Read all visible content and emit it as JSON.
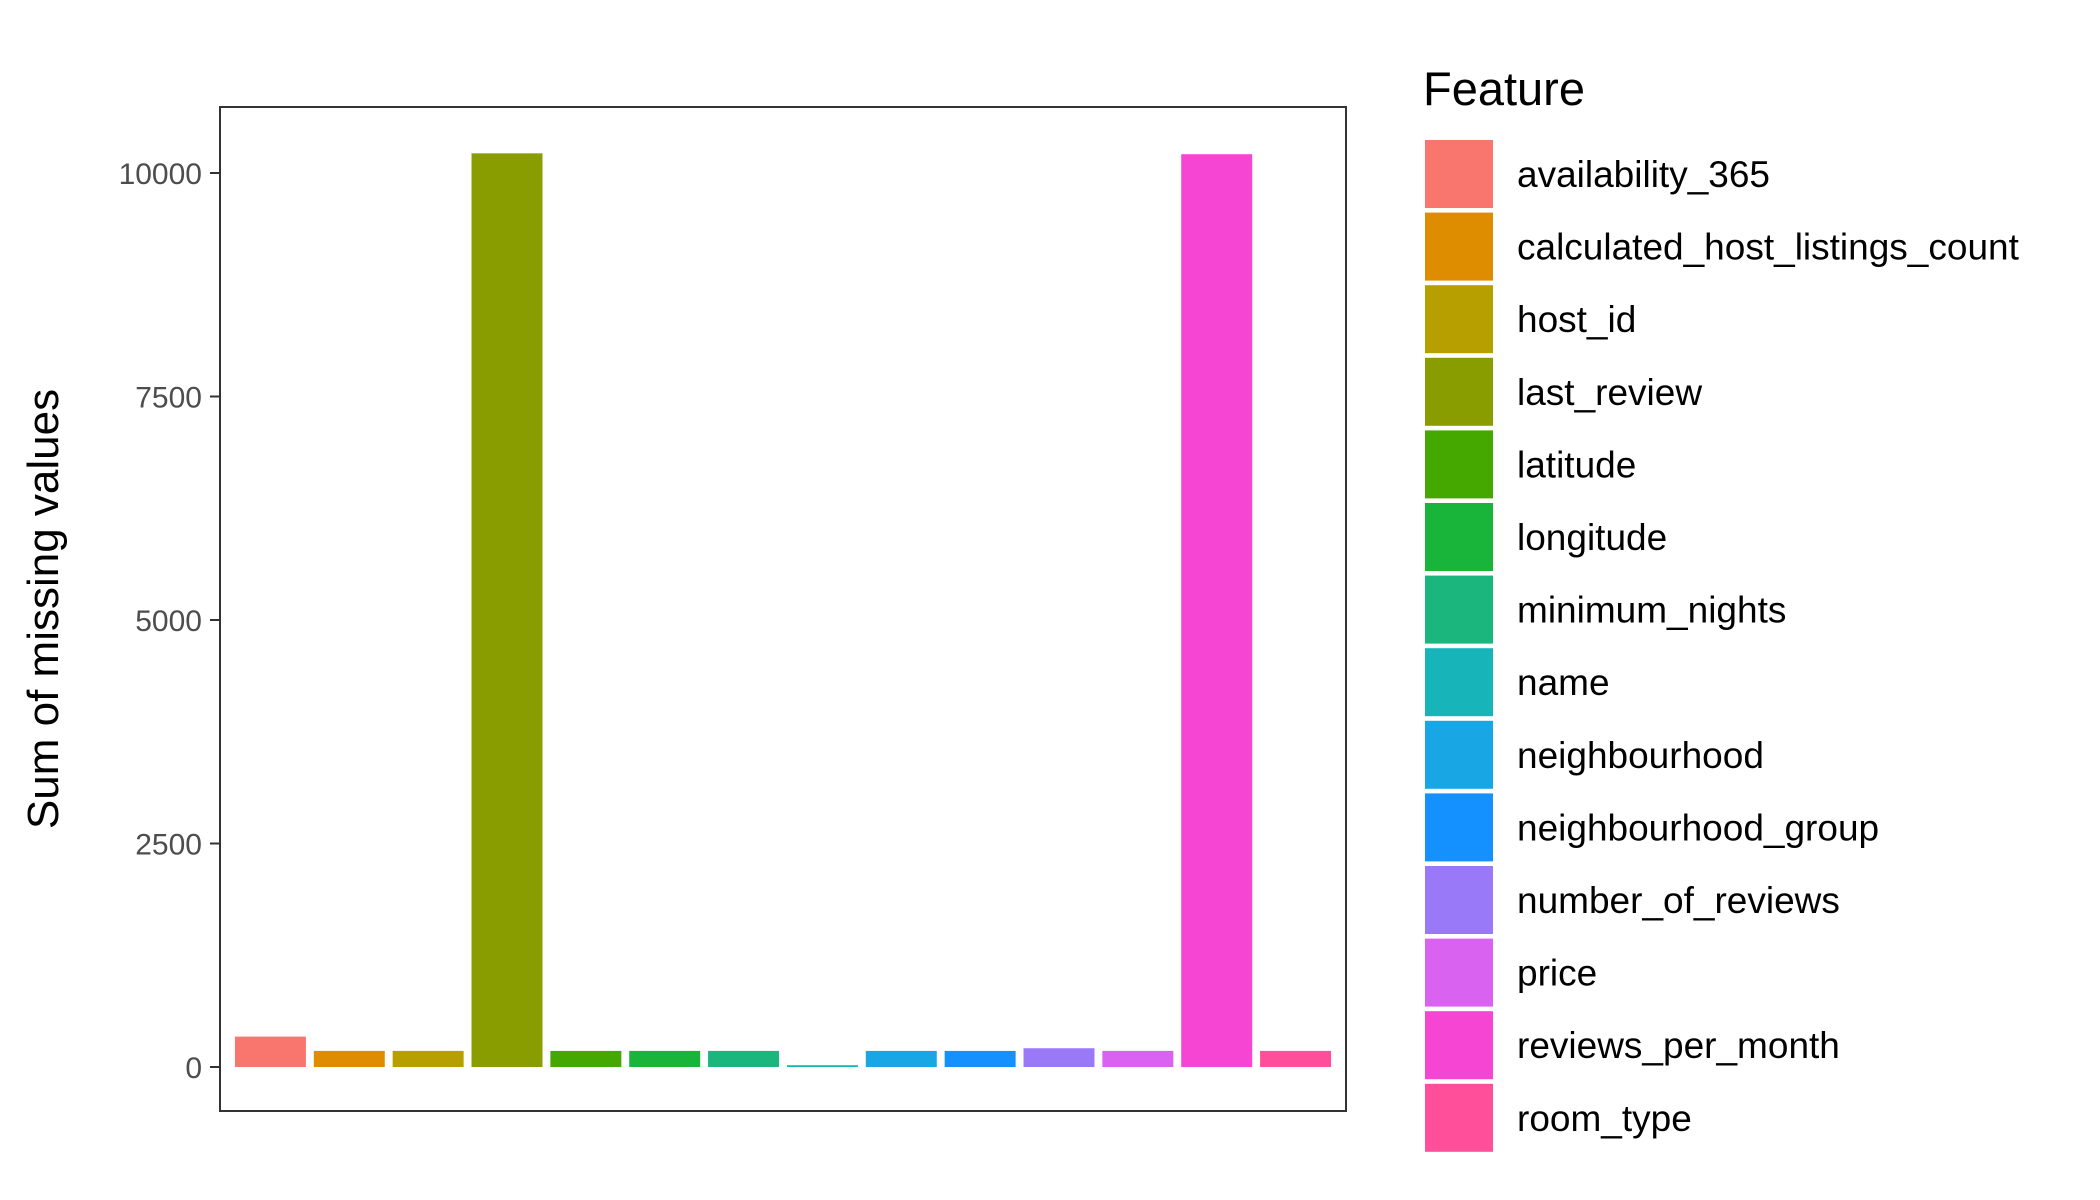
{
  "chart_data": {
    "type": "bar",
    "title": "",
    "xlabel": "",
    "ylabel": "Sum of missing values",
    "ylim": [
      0,
      10700
    ],
    "y_ticks": [
      0,
      2500,
      5000,
      7500,
      10000
    ],
    "y_tick_labels": [
      "0",
      "2500",
      "5000",
      "7500",
      "10000"
    ],
    "grid": false,
    "legend": {
      "title": "Feature",
      "placement": "right"
    },
    "categories": [
      "availability_365",
      "calculated_host_listings_count",
      "host_id",
      "last_review",
      "latitude",
      "longitude",
      "minimum_nights",
      "name",
      "neighbourhood",
      "neighbourhood_group",
      "number_of_reviews",
      "price",
      "reviews_per_month",
      "room_type"
    ],
    "values": [
      340,
      180,
      180,
      10220,
      180,
      180,
      180,
      20,
      180,
      180,
      210,
      180,
      10210,
      180
    ],
    "colors": [
      "#F8766D",
      "#DE8C00",
      "#B79F00",
      "#8A9D00",
      "#45A800",
      "#19B43A",
      "#1AB67E",
      "#17B5B9",
      "#18A7E4",
      "#1490FF",
      "#9A79F9",
      "#DA62F0",
      "#F645D2",
      "#FF4F9A"
    ]
  }
}
